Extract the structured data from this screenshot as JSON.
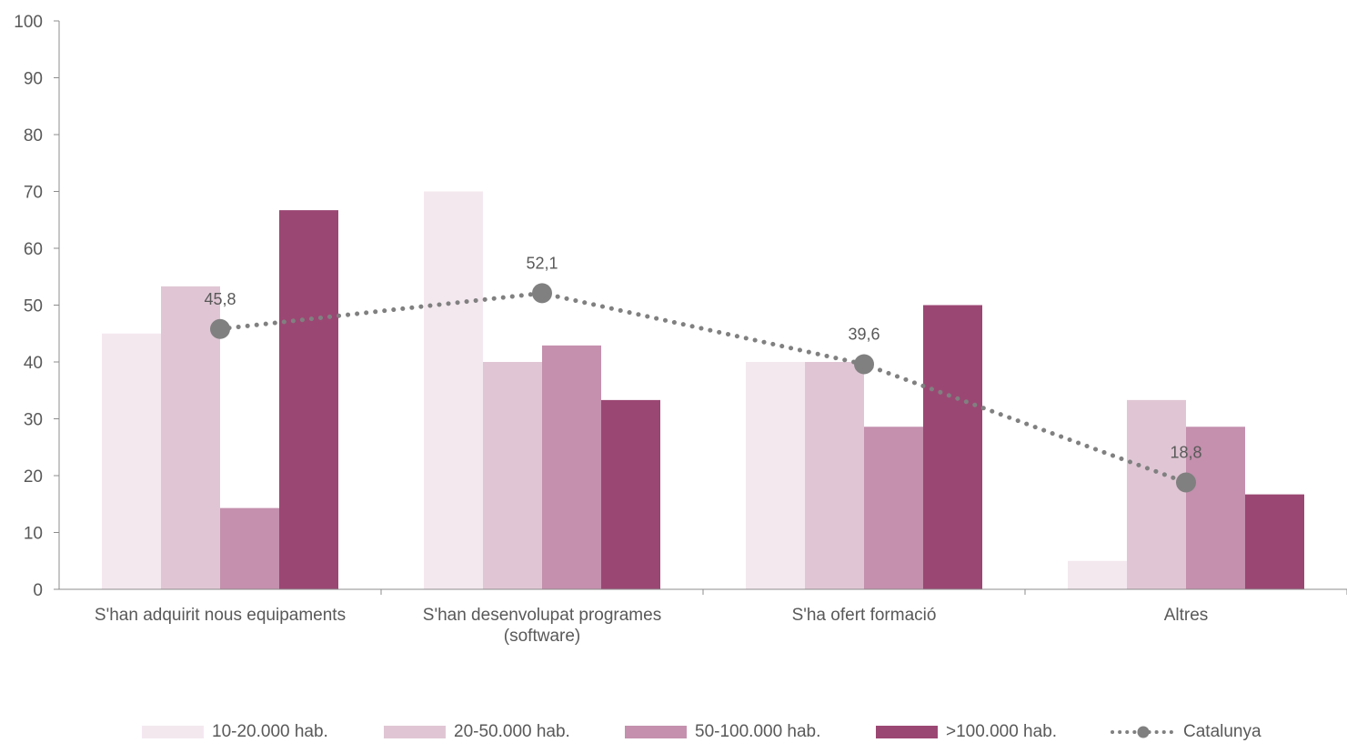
{
  "chart_data": {
    "type": "bar",
    "categories": [
      [
        "S'han adquirit nous equipaments"
      ],
      [
        "S'han desenvolupat programes",
        "(software)"
      ],
      [
        "S'ha ofert formació"
      ],
      [
        "Altres"
      ]
    ],
    "series": [
      {
        "name": "10-20.000 hab.",
        "color": "#f4e8ef",
        "values": [
          45,
          70,
          40,
          5
        ]
      },
      {
        "name": "20-50.000 hab.",
        "color": "#e0c6d4",
        "values": [
          53.3,
          40,
          40,
          33.3
        ]
      },
      {
        "name": "50-100.000 hab.",
        "color": "#c490ad",
        "values": [
          14.3,
          42.9,
          28.6,
          28.6
        ]
      },
      {
        "name": ">100.000 hab.",
        "color": "#9b4773",
        "values": [
          66.7,
          33.3,
          50,
          16.7
        ]
      }
    ],
    "line_series": {
      "name": "Catalunya",
      "color": "#808080",
      "values": [
        45.8,
        52.1,
        39.6,
        18.8
      ],
      "labels": [
        "45,8",
        "52,1",
        "39,6",
        "18,8"
      ]
    },
    "ylim": [
      0,
      100
    ],
    "yticks": [
      "0",
      "10",
      "20",
      "30",
      "40",
      "50",
      "60",
      "70",
      "80",
      "90",
      "100"
    ],
    "grid": false,
    "legend_position": "bottom"
  }
}
